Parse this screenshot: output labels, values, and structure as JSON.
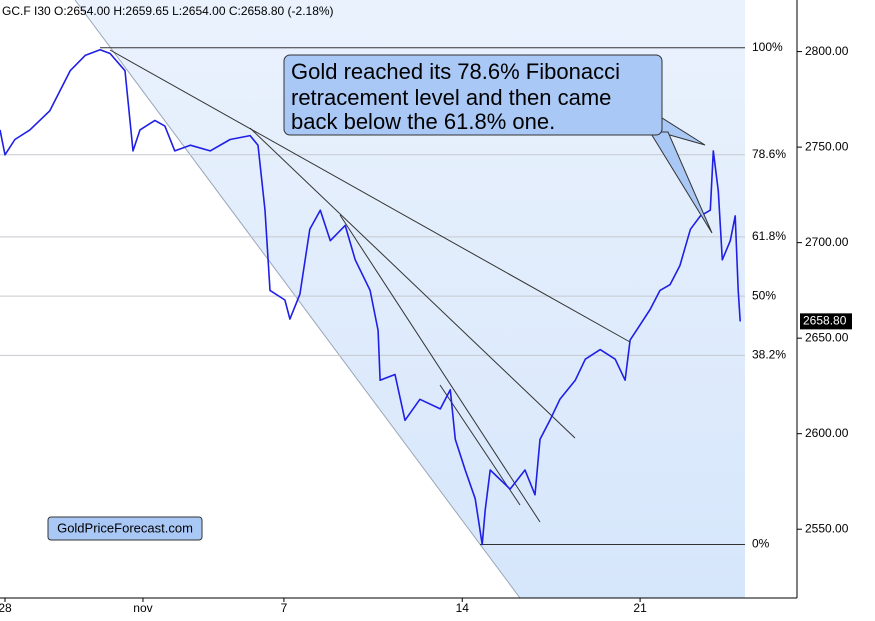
{
  "chart_data": {
    "type": "line",
    "title": "GC.F  I30  O:2654.00  H:2659.65  L:2654.00  C:2658.80  (-2.18%)",
    "x": [
      0,
      1.0,
      3.0,
      6.0,
      10.0,
      14.1,
      17.1,
      20.1,
      22.1,
      25.1,
      26.7,
      28.1,
      31.1,
      33.1,
      35.1,
      38.2,
      42.2,
      46.2,
      50.2,
      51.8,
      53.2,
      54.2,
      57.2,
      58.2,
      60.2,
      62.2,
      64.3,
      66.3,
      69.3,
      71.3,
      74.3,
      75.9,
      76.3,
      79.3,
      81.3,
      84.3,
      88.4,
      90.4,
      91.4,
      93.4,
      95.4,
      96.8,
      97.4,
      98.4,
      100.4,
      102.4,
      105.4,
      107.4,
      108.4,
      110.4,
      112.4,
      115.5,
      117.5,
      120.5,
      123.5,
      125.5,
      126.5,
      128.5,
      130.5,
      132.5,
      134.5,
      136.5,
      138.6,
      140.6,
      142.6,
      143.2,
      144.2,
      145.0,
      146.6,
      147.6,
      148.2,
      148.6
    ],
    "values": [
      2759,
      2746,
      2754,
      2759,
      2769,
      2790,
      2798,
      2801,
      2799,
      2790,
      2748,
      2759,
      2764,
      2761,
      2748,
      2751,
      2748,
      2754,
      2756,
      2751,
      2717,
      2675,
      2670,
      2660,
      2673,
      2707,
      2717,
      2701,
      2709,
      2691,
      2675,
      2654,
      2628,
      2631,
      2607,
      2618,
      2613,
      2623,
      2597,
      2581,
      2566,
      2542,
      2560,
      2581,
      2576,
      2571,
      2581,
      2568,
      2597,
      2607,
      2618,
      2628,
      2639,
      2644,
      2639,
      2628,
      2649,
      2657,
      2665,
      2675,
      2678,
      2688,
      2707,
      2714,
      2717,
      2748,
      2727,
      2691,
      2701,
      2714,
      2675,
      2658.8
    ],
    "color": "#1f1fe6",
    "xlim": [
      0,
      160
    ],
    "ylim": [
      2514,
      2827
    ],
    "xticks": [
      {
        "value": 1,
        "label": "28"
      },
      {
        "value": 28.7,
        "label": "nov"
      },
      {
        "value": 57,
        "label": "7"
      },
      {
        "value": 92.8,
        "label": "14"
      },
      {
        "value": 128.5,
        "label": "21"
      }
    ],
    "yticks": [
      {
        "value": 2550,
        "label": "2550.00"
      },
      {
        "value": 2600,
        "label": "2600.00"
      },
      {
        "value": 2650,
        "label": "2650.00"
      },
      {
        "value": 2700,
        "label": "2700.00"
      },
      {
        "value": 2750,
        "label": "2750.00"
      },
      {
        "value": 2800,
        "label": "2800.00"
      }
    ],
    "fib_levels": [
      {
        "value": 2802,
        "label": "100%"
      },
      {
        "value": 2746,
        "label": "78.6%"
      },
      {
        "value": 2703,
        "label": "61.8%"
      },
      {
        "value": 2672,
        "label": "50%"
      },
      {
        "value": 2641,
        "label": "38.2%"
      },
      {
        "value": 2542,
        "label": "0%"
      }
    ],
    "last_price": {
      "value": 2658.8,
      "label": "2658.80"
    },
    "annotation": [
      "Gold reached its 78.6% Fibonacci",
      "retracement level and then came",
      "back below the 61.8% one."
    ],
    "watermark": "GoldPriceForecast.com"
  }
}
